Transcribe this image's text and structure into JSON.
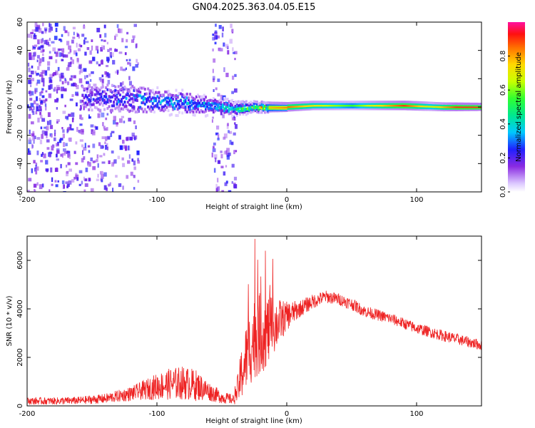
{
  "title": "GN04.2025.363.04.05.E15",
  "colors": {
    "snr_line": "#ee2222",
    "scatter": "#7a1fe0",
    "frame": "#000000"
  },
  "chart_data": [
    {
      "type": "heatmap",
      "title": "GN04.2025.363.04.05.E15",
      "xlabel": "Height of straight line (km)",
      "ylabel": "Frequency (Hz)",
      "xlim": [
        -200,
        150
      ],
      "ylim": [
        -60,
        60
      ],
      "xticks": [
        -200,
        -100,
        0,
        100
      ],
      "yticks": [
        -60,
        -40,
        -20,
        0,
        20,
        40,
        60
      ],
      "colorbar": {
        "label": "Normalized spectral amplitude",
        "range": [
          0,
          1
        ],
        "ticks": [
          0.0,
          0.2,
          0.4,
          0.6,
          0.8
        ],
        "tick_labels": [
          "0.0",
          "0.2",
          "0.4",
          "0.6",
          "0.8"
        ],
        "colormap": "rainbow"
      },
      "description_points": {
        "ridge_center_hz": [
          [
            -155,
            7
          ],
          [
            -120,
            6
          ],
          [
            -100,
            4
          ],
          [
            -80,
            3
          ],
          [
            -60,
            1
          ],
          [
            -40,
            -1
          ],
          [
            -20,
            0
          ],
          [
            0,
            0
          ],
          [
            20,
            1
          ],
          [
            50,
            1
          ],
          [
            90,
            1
          ],
          [
            120,
            0
          ],
          [
            150,
            0
          ]
        ],
        "ridge_halfwidth_hz": [
          [
            -155,
            10
          ],
          [
            -120,
            10
          ],
          [
            -100,
            8
          ],
          [
            -80,
            7
          ],
          [
            -60,
            6
          ],
          [
            -40,
            4
          ],
          [
            -20,
            3
          ],
          [
            0,
            2.5
          ],
          [
            50,
            2.5
          ],
          [
            100,
            2.5
          ],
          [
            150,
            2
          ]
        ],
        "peak_amplitude": [
          [
            -155,
            0.25
          ],
          [
            -120,
            0.3
          ],
          [
            -100,
            0.35
          ],
          [
            -80,
            0.4
          ],
          [
            -60,
            0.35
          ],
          [
            -40,
            0.45
          ],
          [
            -20,
            0.75
          ],
          [
            0,
            0.85
          ],
          [
            20,
            0.7
          ],
          [
            50,
            0.55
          ],
          [
            90,
            0.9
          ],
          [
            110,
            0.65
          ],
          [
            130,
            0.9
          ],
          [
            150,
            0.9
          ]
        ],
        "noise_regions_km": [
          [
            -200,
            -115
          ],
          [
            -58,
            -40
          ]
        ]
      }
    },
    {
      "type": "line",
      "xlabel": "Height of straight line (km)",
      "ylabel": "SNR (10 * v/v)",
      "xlim": [
        -200,
        150
      ],
      "ylim": [
        0,
        7000
      ],
      "xticks": [
        -200,
        -100,
        0,
        100
      ],
      "yticks": [
        0,
        2000,
        4000,
        6000
      ],
      "series": [
        {
          "name": "SNR",
          "envelope_x": [
            -200,
            -180,
            -160,
            -140,
            -120,
            -110,
            -100,
            -90,
            -80,
            -70,
            -60,
            -50,
            -40,
            -35,
            -30,
            -25,
            -20,
            -15,
            -10,
            -5,
            0,
            10,
            20,
            30,
            40,
            50,
            60,
            80,
            100,
            120,
            150
          ],
          "envelope_mean": [
            200,
            200,
            220,
            300,
            500,
            650,
            800,
            900,
            950,
            850,
            600,
            350,
            250,
            1300,
            2200,
            2800,
            3000,
            3100,
            3300,
            3500,
            3700,
            4000,
            4300,
            4500,
            4400,
            4200,
            3900,
            3600,
            3200,
            2900,
            2500
          ],
          "envelope_noise": [
            150,
            150,
            160,
            200,
            300,
            400,
            550,
            650,
            700,
            650,
            400,
            250,
            200,
            1100,
            1500,
            1700,
            1700,
            1500,
            1200,
            900,
            600,
            350,
            300,
            260,
            250,
            250,
            240,
            230,
            230,
            230,
            220
          ]
        }
      ]
    }
  ]
}
